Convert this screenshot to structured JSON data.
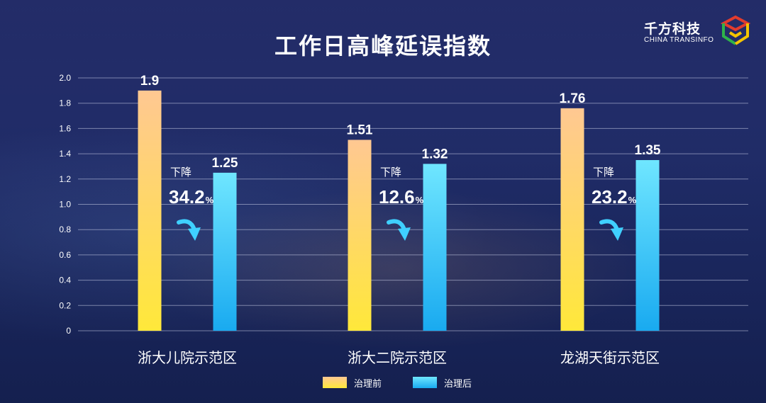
{
  "title": "工作日高峰延误指数",
  "logo": {
    "name_cn": "千方科技",
    "name_en": "CHINA TRANSINFO"
  },
  "colors": {
    "before_top": "#ffc892",
    "before_bottom": "#ffe83a",
    "after_top": "#6fe6ff",
    "after_bottom": "#19aaf0",
    "grid": "#c8cde6",
    "arrow": "#3fd0ff"
  },
  "chart_data": {
    "type": "bar",
    "title": "工作日高峰延误指数",
    "categories": [
      "浙大儿院示范区",
      "浙大二院示范区",
      "龙湖天街示范区"
    ],
    "series": [
      {
        "name": "治理前",
        "values": [
          1.9,
          1.51,
          1.76
        ]
      },
      {
        "name": "治理后",
        "values": [
          1.25,
          1.32,
          1.35
        ]
      }
    ],
    "value_labels": [
      [
        "1.9",
        "1.51",
        "1.76"
      ],
      [
        "1.25",
        "1.32",
        "1.35"
      ]
    ],
    "decrease": {
      "label": "下降",
      "values": [
        "34.2",
        "12.6",
        "23.2"
      ],
      "unit": "%"
    },
    "yticks": [
      "0",
      "0.2",
      "0.4",
      "0.6",
      "0.8",
      "1.0",
      "1.2",
      "1.4",
      "1.6",
      "1.8",
      "2.0"
    ],
    "ylim": [
      0,
      2.0
    ],
    "grid": true,
    "legend": "bottom-center",
    "xlabel": "",
    "ylabel": ""
  }
}
